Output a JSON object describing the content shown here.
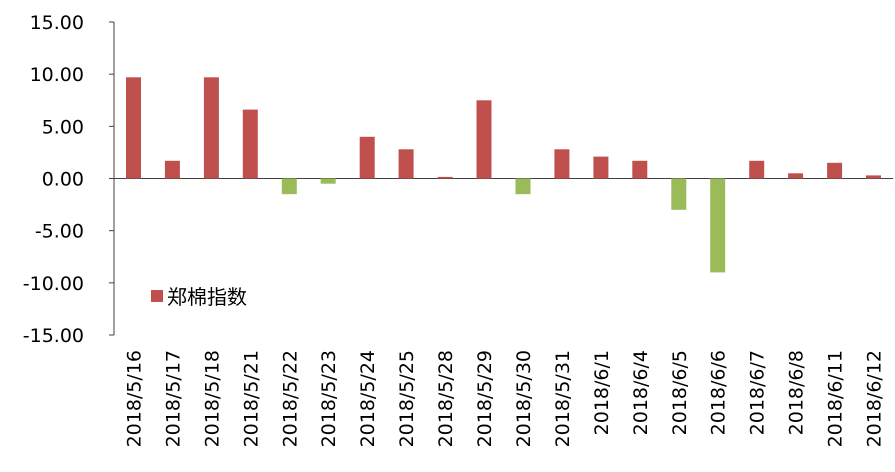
{
  "chart_data": {
    "type": "bar",
    "categories": [
      "2018/5/16",
      "2018/5/17",
      "2018/5/18",
      "2018/5/21",
      "2018/5/22",
      "2018/5/23",
      "2018/5/24",
      "2018/5/25",
      "2018/5/28",
      "2018/5/29",
      "2018/5/30",
      "2018/5/31",
      "2018/6/1",
      "2018/6/4",
      "2018/6/5",
      "2018/6/6",
      "2018/6/7",
      "2018/6/8",
      "2018/6/11",
      "2018/6/12"
    ],
    "series": [
      {
        "name": "郑棉指数",
        "values": [
          9.7,
          1.7,
          9.7,
          6.6,
          -1.5,
          -0.5,
          4.0,
          2.8,
          0.15,
          7.5,
          -1.5,
          2.8,
          2.1,
          1.7,
          -3.0,
          -9.0,
          1.7,
          0.5,
          1.5,
          0.3
        ]
      }
    ],
    "yticks": [
      "15.00",
      "10.00",
      "5.00",
      "0.00",
      "-5.00",
      "-10.00",
      "-15.00"
    ],
    "ylim": [
      -15,
      15
    ],
    "grid": false,
    "legend_position": "bottom-left",
    "colors": {
      "positive": "#C0504D",
      "negative": "#9BBB59",
      "axis": "#404040"
    }
  }
}
